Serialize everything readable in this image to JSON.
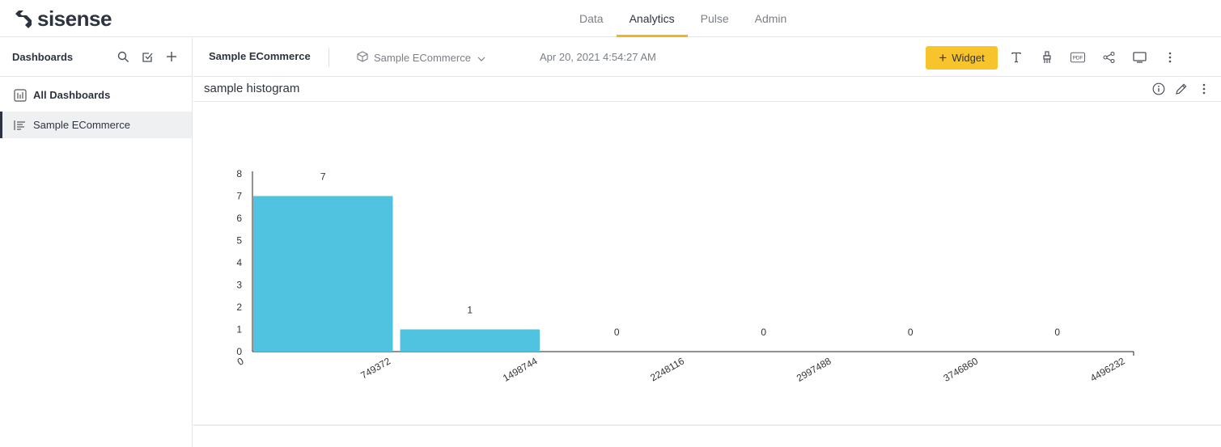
{
  "app": {
    "logo_text": "sisense"
  },
  "nav": {
    "items": [
      "Data",
      "Analytics",
      "Pulse",
      "Admin"
    ],
    "active": "Analytics"
  },
  "sidebar": {
    "title": "Dashboards",
    "items": [
      {
        "label": "All Dashboards",
        "icon": "dashboards-grid-icon"
      },
      {
        "label": "Sample ECommerce",
        "icon": "dashboard-list-icon",
        "selected": true
      }
    ]
  },
  "dashboard": {
    "title": "Sample ECommerce",
    "datasource": "Sample ECommerce",
    "date": "Apr 20, 2021 4:54:27 AM",
    "widget_button": "Widget",
    "pdf_label": "PDF"
  },
  "widget": {
    "title": "sample histogram"
  },
  "colors": {
    "accent": "#f7c52b",
    "bar": "#4fc3df"
  },
  "chart_data": {
    "type": "bar",
    "bins": [
      {
        "from": 0,
        "to": 749372,
        "value": 7
      },
      {
        "from": 749372,
        "to": 1498744,
        "value": 1
      },
      {
        "from": 1498744,
        "to": 2248116,
        "value": 0
      },
      {
        "from": 2248116,
        "to": 2997488,
        "value": 0
      },
      {
        "from": 2997488,
        "to": 3746860,
        "value": 0
      },
      {
        "from": 3746860,
        "to": 4496232,
        "value": 0
      }
    ],
    "x_ticks": [
      "0",
      "749372",
      "1498744",
      "2248116",
      "2997488",
      "3746860",
      "4496232"
    ],
    "y_ticks": [
      0,
      1,
      2,
      3,
      4,
      5,
      6,
      7,
      8
    ],
    "ylim": [
      0,
      8
    ],
    "data_labels": true,
    "grid": false
  }
}
